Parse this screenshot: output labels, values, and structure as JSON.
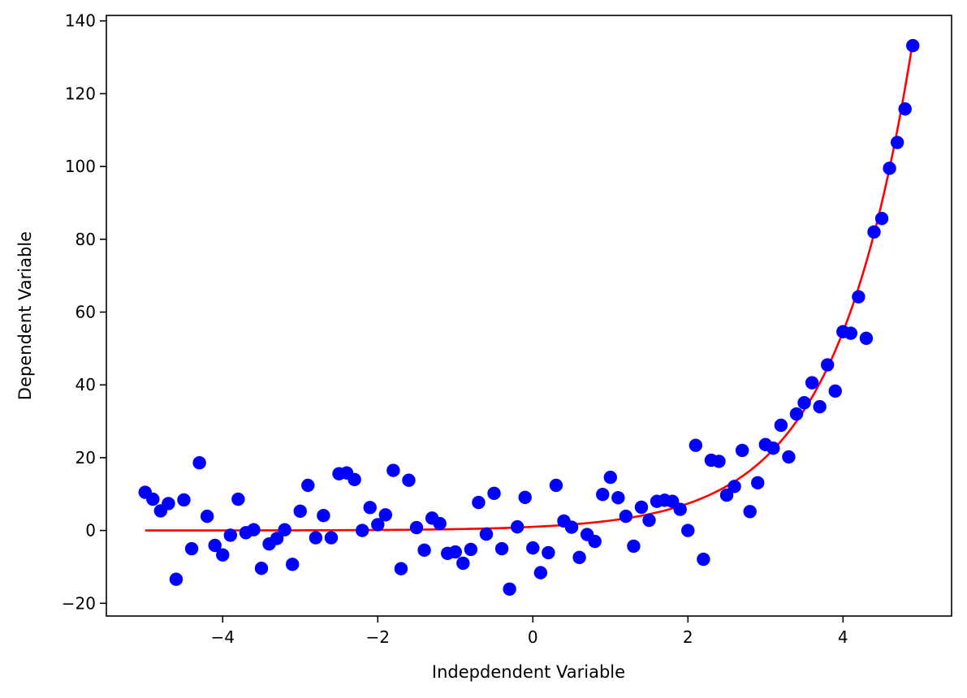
{
  "chart_data": {
    "type": "scatter",
    "title": "",
    "xlabel": "Indepdendent Variable",
    "ylabel": "Dependent Variable",
    "xlim": [
      -5.5,
      5.4
    ],
    "ylim": [
      -23.5,
      141.5
    ],
    "x_ticks": [
      -4,
      -2,
      0,
      2,
      4
    ],
    "x_tick_labels": [
      "−4",
      "−2",
      "0",
      "2",
      "4"
    ],
    "y_ticks": [
      -20,
      0,
      20,
      40,
      60,
      80,
      100,
      120,
      140
    ],
    "y_tick_labels": [
      "−20",
      "0",
      "20",
      "40",
      "60",
      "80",
      "100",
      "120",
      "140"
    ],
    "grid": false,
    "legend": "none",
    "series": [
      {
        "kind": "scatter",
        "color": "#0000ff",
        "points": [
          [
            -5.0,
            10.5
          ],
          [
            -4.9,
            8.6
          ],
          [
            -4.8,
            5.4
          ],
          [
            -4.7,
            7.4
          ],
          [
            -4.6,
            -13.4
          ],
          [
            -4.5,
            8.4
          ],
          [
            -4.4,
            -5.0
          ],
          [
            -4.3,
            18.6
          ],
          [
            -4.2,
            3.9
          ],
          [
            -4.1,
            -4.1
          ],
          [
            -4.0,
            -6.7
          ],
          [
            -3.9,
            -1.3
          ],
          [
            -3.8,
            8.6
          ],
          [
            -3.7,
            -0.6
          ],
          [
            -3.6,
            0.2
          ],
          [
            -3.5,
            -10.4
          ],
          [
            -3.4,
            -3.7
          ],
          [
            -3.3,
            -2.2
          ],
          [
            -3.2,
            0.2
          ],
          [
            -3.1,
            -9.3
          ],
          [
            -3.0,
            5.3
          ],
          [
            -2.9,
            12.4
          ],
          [
            -2.8,
            -2.0
          ],
          [
            -2.7,
            4.1
          ],
          [
            -2.6,
            -2.0
          ],
          [
            -2.5,
            15.6
          ],
          [
            -2.4,
            15.8
          ],
          [
            -2.3,
            14.0
          ],
          [
            -2.2,
            0.0
          ],
          [
            -2.1,
            6.3
          ],
          [
            -2.0,
            1.6
          ],
          [
            -1.9,
            4.3
          ],
          [
            -1.8,
            16.5
          ],
          [
            -1.7,
            -10.5
          ],
          [
            -1.6,
            13.8
          ],
          [
            -1.5,
            0.8
          ],
          [
            -1.4,
            -5.4
          ],
          [
            -1.3,
            3.4
          ],
          [
            -1.2,
            1.9
          ],
          [
            -1.1,
            -6.3
          ],
          [
            -1.0,
            -5.9
          ],
          [
            -0.9,
            -9.0
          ],
          [
            -0.8,
            -5.2
          ],
          [
            -0.7,
            7.7
          ],
          [
            -0.6,
            -1.0
          ],
          [
            -0.5,
            10.2
          ],
          [
            -0.4,
            -5.0
          ],
          [
            -0.3,
            -16.1
          ],
          [
            -0.2,
            1.0
          ],
          [
            -0.1,
            9.1
          ],
          [
            0.0,
            -4.8
          ],
          [
            0.1,
            -11.6
          ],
          [
            0.2,
            -6.1
          ],
          [
            0.3,
            12.4
          ],
          [
            0.4,
            2.6
          ],
          [
            0.5,
            0.9
          ],
          [
            0.6,
            -7.4
          ],
          [
            0.7,
            -1.1
          ],
          [
            0.8,
            -3.0
          ],
          [
            0.9,
            9.9
          ],
          [
            1.0,
            14.6
          ],
          [
            1.1,
            9.0
          ],
          [
            1.2,
            3.9
          ],
          [
            1.3,
            -4.3
          ],
          [
            1.4,
            6.4
          ],
          [
            1.5,
            2.8
          ],
          [
            1.6,
            8.0
          ],
          [
            1.7,
            8.3
          ],
          [
            1.8,
            8.0
          ],
          [
            1.9,
            5.8
          ],
          [
            2.0,
            0.0
          ],
          [
            2.1,
            23.4
          ],
          [
            2.2,
            -7.9
          ],
          [
            2.3,
            19.3
          ],
          [
            2.4,
            19.0
          ],
          [
            2.5,
            9.7
          ],
          [
            2.6,
            12.1
          ],
          [
            2.7,
            22.0
          ],
          [
            2.8,
            5.2
          ],
          [
            2.9,
            13.1
          ],
          [
            3.0,
            23.6
          ],
          [
            3.1,
            22.6
          ],
          [
            3.2,
            28.9
          ],
          [
            3.3,
            20.2
          ],
          [
            3.4,
            32.0
          ],
          [
            3.5,
            35.1
          ],
          [
            3.6,
            40.6
          ],
          [
            3.7,
            34.0
          ],
          [
            3.8,
            45.5
          ],
          [
            3.9,
            38.3
          ],
          [
            4.0,
            54.6
          ],
          [
            4.1,
            54.2
          ],
          [
            4.2,
            64.2
          ],
          [
            4.3,
            52.8
          ],
          [
            4.4,
            82.0
          ],
          [
            4.5,
            85.7
          ],
          [
            4.6,
            99.5
          ],
          [
            4.7,
            106.6
          ],
          [
            4.8,
            115.8
          ],
          [
            4.9,
            133.2
          ]
        ]
      },
      {
        "kind": "line",
        "color": "#ff0000",
        "function": "exp",
        "x_range": [
          -5.0,
          4.9
        ]
      }
    ]
  }
}
